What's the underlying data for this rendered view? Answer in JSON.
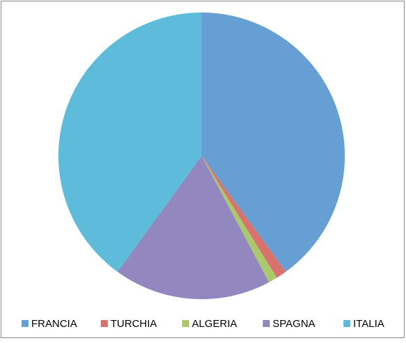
{
  "chart_data": {
    "type": "pie",
    "categories": [
      "FRANCIA",
      "TURCHIA",
      "ALGERIA",
      "SPAGNA",
      "ITALIA"
    ],
    "values": [
      40,
      1.2,
      1,
      17.8,
      40
    ],
    "colors": [
      "#669fd3",
      "#d9716c",
      "#a9c96b",
      "#9387bf",
      "#5ebcdb"
    ],
    "legend": "bottom"
  }
}
